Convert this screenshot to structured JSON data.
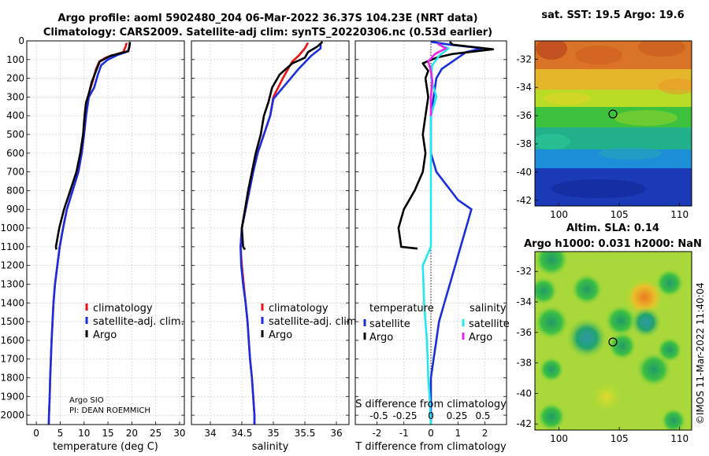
{
  "title": {
    "line1": "Argo profile: aoml 5902480_204 06-Mar-2022 36.37S 104.23E (NRT data)",
    "line2": "Climatology: CARS2009. Satellite-adj clim: synTS_20220306.nc (0.53d earlier)"
  },
  "credit": {
    "line1": "Argo SIO",
    "line2": "PI: DEAN ROEMMICH"
  },
  "imos_stamp": "©IMOS 11-Mar-2022 11:40:04",
  "colors": {
    "climatology": "#ee1111",
    "satellite": "#1a2ee0",
    "argo": "#000000",
    "sat_salinity": "#22e8ee",
    "argo_salinity": "#ee22ee",
    "grid": "#c8c8c8"
  },
  "chart_data": [
    {
      "type": "line",
      "title": "",
      "xlabel": "temperature (deg C)",
      "ylabel": "",
      "xlim": [
        -2,
        31
      ],
      "ylim": [
        2050,
        0
      ],
      "xticks": [
        "0",
        "5",
        "10",
        "15",
        "20",
        "25",
        "30"
      ],
      "yticks": [
        "0",
        "100",
        "200",
        "300",
        "400",
        "500",
        "600",
        "700",
        "800",
        "900",
        "1000",
        "1100",
        "1200",
        "1300",
        "1400",
        "1500",
        "1600",
        "1700",
        "1800",
        "1900",
        "2000"
      ],
      "grid": true,
      "legend": {
        "placement": "lower-right",
        "entries": [
          "climatology",
          "satellite-adj. clim.",
          "Argo"
        ]
      },
      "series": [
        {
          "name": "climatology",
          "color": "#ee1111",
          "points": [
            [
              18.9,
              10
            ],
            [
              18.7,
              30
            ],
            [
              18.2,
              60
            ],
            [
              14.5,
              90
            ],
            [
              13.2,
              110
            ],
            [
              12.5,
              150
            ],
            [
              12.0,
              200
            ],
            [
              11.4,
              250
            ],
            [
              10.8,
              300
            ],
            [
              10.4,
              400
            ],
            [
              10.0,
              500
            ],
            [
              9.5,
              600
            ],
            [
              8.8,
              700
            ],
            [
              7.6,
              800
            ],
            [
              6.4,
              900
            ],
            [
              5.6,
              1000
            ],
            [
              4.9,
              1100
            ],
            [
              4.4,
              1200
            ],
            [
              3.9,
              1300
            ],
            [
              3.6,
              1400
            ],
            [
              3.4,
              1500
            ],
            [
              3.2,
              1600
            ],
            [
              3.05,
              1700
            ],
            [
              2.9,
              1800
            ],
            [
              2.8,
              1900
            ],
            [
              2.65,
              2000
            ],
            [
              2.6,
              2050
            ]
          ]
        },
        {
          "name": "satellite-adj. clim.",
          "color": "#1a2ee0",
          "points": [
            [
              19.6,
              10
            ],
            [
              19.5,
              30
            ],
            [
              19.3,
              55
            ],
            [
              17.0,
              75
            ],
            [
              15.0,
              100
            ],
            [
              13.6,
              130
            ],
            [
              12.9,
              180
            ],
            [
              12.1,
              250
            ],
            [
              11.0,
              300
            ],
            [
              10.4,
              400
            ],
            [
              10.0,
              500
            ],
            [
              9.5,
              600
            ],
            [
              8.8,
              700
            ],
            [
              7.6,
              800
            ],
            [
              6.4,
              900
            ],
            [
              5.6,
              1000
            ],
            [
              4.9,
              1100
            ],
            [
              4.4,
              1200
            ],
            [
              3.9,
              1300
            ],
            [
              3.6,
              1400
            ],
            [
              3.4,
              1500
            ],
            [
              3.2,
              1600
            ],
            [
              3.05,
              1700
            ],
            [
              2.9,
              1800
            ],
            [
              2.8,
              1900
            ],
            [
              2.65,
              2000
            ],
            [
              2.6,
              2050
            ]
          ]
        },
        {
          "name": "Argo",
          "color": "#000000",
          "points": [
            [
              19.6,
              5
            ],
            [
              19.5,
              30
            ],
            [
              19.2,
              55
            ],
            [
              15.5,
              80
            ],
            [
              13.3,
              110
            ],
            [
              12.5,
              160
            ],
            [
              11.6,
              220
            ],
            [
              11.0,
              280
            ],
            [
              10.4,
              330
            ],
            [
              10.1,
              400
            ],
            [
              9.8,
              500
            ],
            [
              9.2,
              600
            ],
            [
              8.4,
              700
            ],
            [
              7.1,
              800
            ],
            [
              5.8,
              900
            ],
            [
              4.8,
              1000
            ],
            [
              4.1,
              1100
            ],
            [
              4.2,
              1115
            ]
          ]
        }
      ]
    },
    {
      "type": "line",
      "title": "",
      "xlabel": "salinity",
      "ylabel": "",
      "xlim": [
        33.7,
        36.2
      ],
      "ylim": [
        2050,
        0
      ],
      "xticks": [
        "34",
        "34.5",
        "35",
        "35.5",
        "36"
      ],
      "grid": true,
      "legend": {
        "placement": "lower-right",
        "entries": [
          "climatology",
          "satellite-adj. clim.",
          "Argo"
        ]
      },
      "series": [
        {
          "name": "climatology",
          "color": "#ee1111",
          "points": [
            [
              35.55,
              10
            ],
            [
              35.5,
              40
            ],
            [
              35.4,
              80
            ],
            [
              35.3,
              110
            ],
            [
              35.15,
              200
            ],
            [
              35.0,
              300
            ],
            [
              34.95,
              400
            ],
            [
              34.85,
              500
            ],
            [
              34.75,
              600
            ],
            [
              34.68,
              700
            ],
            [
              34.62,
              800
            ],
            [
              34.56,
              900
            ],
            [
              34.5,
              1000
            ],
            [
              34.48,
              1100
            ],
            [
              34.5,
              1200
            ],
            [
              34.53,
              1300
            ],
            [
              34.56,
              1400
            ],
            [
              34.59,
              1500
            ],
            [
              34.61,
              1600
            ],
            [
              34.63,
              1700
            ],
            [
              34.66,
              1800
            ],
            [
              34.68,
              1900
            ],
            [
              34.7,
              2000
            ],
            [
              34.7,
              2050
            ]
          ]
        },
        {
          "name": "satellite-adj. clim.",
          "color": "#1a2ee0",
          "points": [
            [
              35.75,
              10
            ],
            [
              35.75,
              40
            ],
            [
              35.6,
              80
            ],
            [
              35.4,
              150
            ],
            [
              35.2,
              230
            ],
            [
              35.0,
              310
            ],
            [
              34.95,
              400
            ],
            [
              34.85,
              500
            ],
            [
              34.75,
              600
            ],
            [
              34.68,
              700
            ],
            [
              34.62,
              800
            ],
            [
              34.56,
              900
            ],
            [
              34.5,
              1000
            ],
            [
              34.48,
              1100
            ],
            [
              34.49,
              1200
            ],
            [
              34.52,
              1300
            ],
            [
              34.56,
              1400
            ],
            [
              34.59,
              1500
            ],
            [
              34.61,
              1600
            ],
            [
              34.63,
              1700
            ],
            [
              34.66,
              1800
            ],
            [
              34.68,
              1900
            ],
            [
              34.7,
              2000
            ],
            [
              34.7,
              2050
            ]
          ]
        },
        {
          "name": "Argo",
          "color": "#000000",
          "points": [
            [
              35.78,
              5
            ],
            [
              35.7,
              30
            ],
            [
              35.55,
              60
            ],
            [
              35.5,
              90
            ],
            [
              35.3,
              120
            ],
            [
              35.1,
              180
            ],
            [
              34.98,
              250
            ],
            [
              34.92,
              330
            ],
            [
              34.85,
              400
            ],
            [
              34.8,
              500
            ],
            [
              34.72,
              600
            ],
            [
              34.66,
              700
            ],
            [
              34.6,
              800
            ],
            [
              34.55,
              900
            ],
            [
              34.5,
              1000
            ],
            [
              34.52,
              1100
            ],
            [
              34.55,
              1115
            ]
          ]
        }
      ]
    },
    {
      "type": "line",
      "title": "",
      "xlabel": "T difference from climatology",
      "ylabel": "",
      "xlim": [
        -2.8,
        2.8
      ],
      "ylim": [
        2050,
        0
      ],
      "xticks": [
        "-2",
        "-1",
        "0",
        "1",
        "2"
      ],
      "secondary_xlabel": "S difference from climatology",
      "secondary_xticks": [
        "-0.5",
        "-0.25",
        "0",
        "0.25",
        "0.5"
      ],
      "grid": true,
      "legend": {
        "placement": "lower",
        "groups": [
          {
            "heading": "temperature",
            "entries": [
              "satellite",
              "Argo"
            ]
          },
          {
            "heading": "salinity",
            "entries": [
              "satellite",
              "Argo"
            ]
          }
        ]
      },
      "series": [
        {
          "name": "temperature satellite",
          "color": "#1a2ee0",
          "points": [
            [
              0.0,
              5
            ],
            [
              0.7,
              20
            ],
            [
              1.9,
              40
            ],
            [
              1.3,
              60
            ],
            [
              0.9,
              100
            ],
            [
              0.4,
              150
            ],
            [
              0.2,
              200
            ],
            [
              0.1,
              300
            ],
            [
              0.0,
              400
            ],
            [
              0.0,
              600
            ],
            [
              0.2,
              700
            ],
            [
              1.0,
              850
            ],
            [
              1.5,
              900
            ],
            [
              1.3,
              1000
            ],
            [
              1.1,
              1100
            ],
            [
              0.9,
              1200
            ],
            [
              0.7,
              1300
            ],
            [
              0.5,
              1400
            ],
            [
              0.3,
              1500
            ],
            [
              0.2,
              1600
            ],
            [
              0.1,
              1700
            ],
            [
              0.0,
              1800
            ],
            [
              0.0,
              2000
            ],
            [
              0.0,
              2050
            ]
          ]
        },
        {
          "name": "temperature Argo",
          "color": "#000000",
          "points": [
            [
              0.7,
              5
            ],
            [
              0.8,
              20
            ],
            [
              2.3,
              45
            ],
            [
              0.8,
              70
            ],
            [
              0.2,
              90
            ],
            [
              -0.3,
              120
            ],
            [
              -0.1,
              160
            ],
            [
              -0.2,
              200
            ],
            [
              -0.1,
              300
            ],
            [
              -0.2,
              400
            ],
            [
              -0.3,
              500
            ],
            [
              -0.2,
              600
            ],
            [
              -0.3,
              700
            ],
            [
              -0.6,
              800
            ],
            [
              -1.0,
              900
            ],
            [
              -1.2,
              1000
            ],
            [
              -1.1,
              1100
            ],
            [
              -0.5,
              1110
            ]
          ]
        },
        {
          "name": "salinity satellite",
          "color": "#22e8ee",
          "points": [
            [
              0.3,
              20
            ],
            [
              0.65,
              40
            ],
            [
              0.3,
              80
            ],
            [
              0.05,
              130
            ],
            [
              0.0,
              200
            ],
            [
              0.2,
              300
            ],
            [
              0.0,
              400
            ],
            [
              0.0,
              700
            ],
            [
              0.0,
              1000
            ],
            [
              0.0,
              1100
            ],
            [
              -0.3,
              1200
            ],
            [
              -0.25,
              1400
            ],
            [
              -0.2,
              1500
            ],
            [
              -0.15,
              1600
            ],
            [
              -0.12,
              1700
            ],
            [
              -0.1,
              1800
            ],
            [
              -0.05,
              1900
            ],
            [
              0.0,
              2050
            ]
          ]
        },
        {
          "name": "salinity Argo",
          "color": "#ee22ee",
          "points": [
            [
              0.25,
              15
            ],
            [
              0.55,
              40
            ],
            [
              0.15,
              70
            ],
            [
              -0.1,
              110
            ],
            [
              0.0,
              160
            ],
            [
              0.05,
              210
            ],
            [
              0.0,
              300
            ],
            [
              0.0,
              400
            ]
          ]
        }
      ]
    },
    {
      "type": "heatmap",
      "title": "sat. SST: 19.5 Argo: 19.6",
      "xticks": [
        "100",
        "105",
        "110"
      ],
      "yticks": [
        "-32",
        "-34",
        "-36",
        "-38",
        "-40",
        "-42"
      ],
      "xlim": [
        98,
        111
      ],
      "ylim": [
        -42.4,
        -30.7
      ],
      "marker": {
        "lon": 104.23,
        "lat": -36.37
      }
    },
    {
      "type": "heatmap",
      "title": "Altim. SLA: 0.14",
      "subtitle": "Argo h1000: 0.031 h2000: NaN",
      "xticks": [
        "100",
        "105",
        "110"
      ],
      "yticks": [
        "-32",
        "-34",
        "-36",
        "-38",
        "-40",
        "-42"
      ],
      "xlim": [
        98,
        111
      ],
      "ylim": [
        -42.4,
        -30.7
      ],
      "marker": {
        "lon": 104.23,
        "lat": -36.37
      }
    }
  ]
}
